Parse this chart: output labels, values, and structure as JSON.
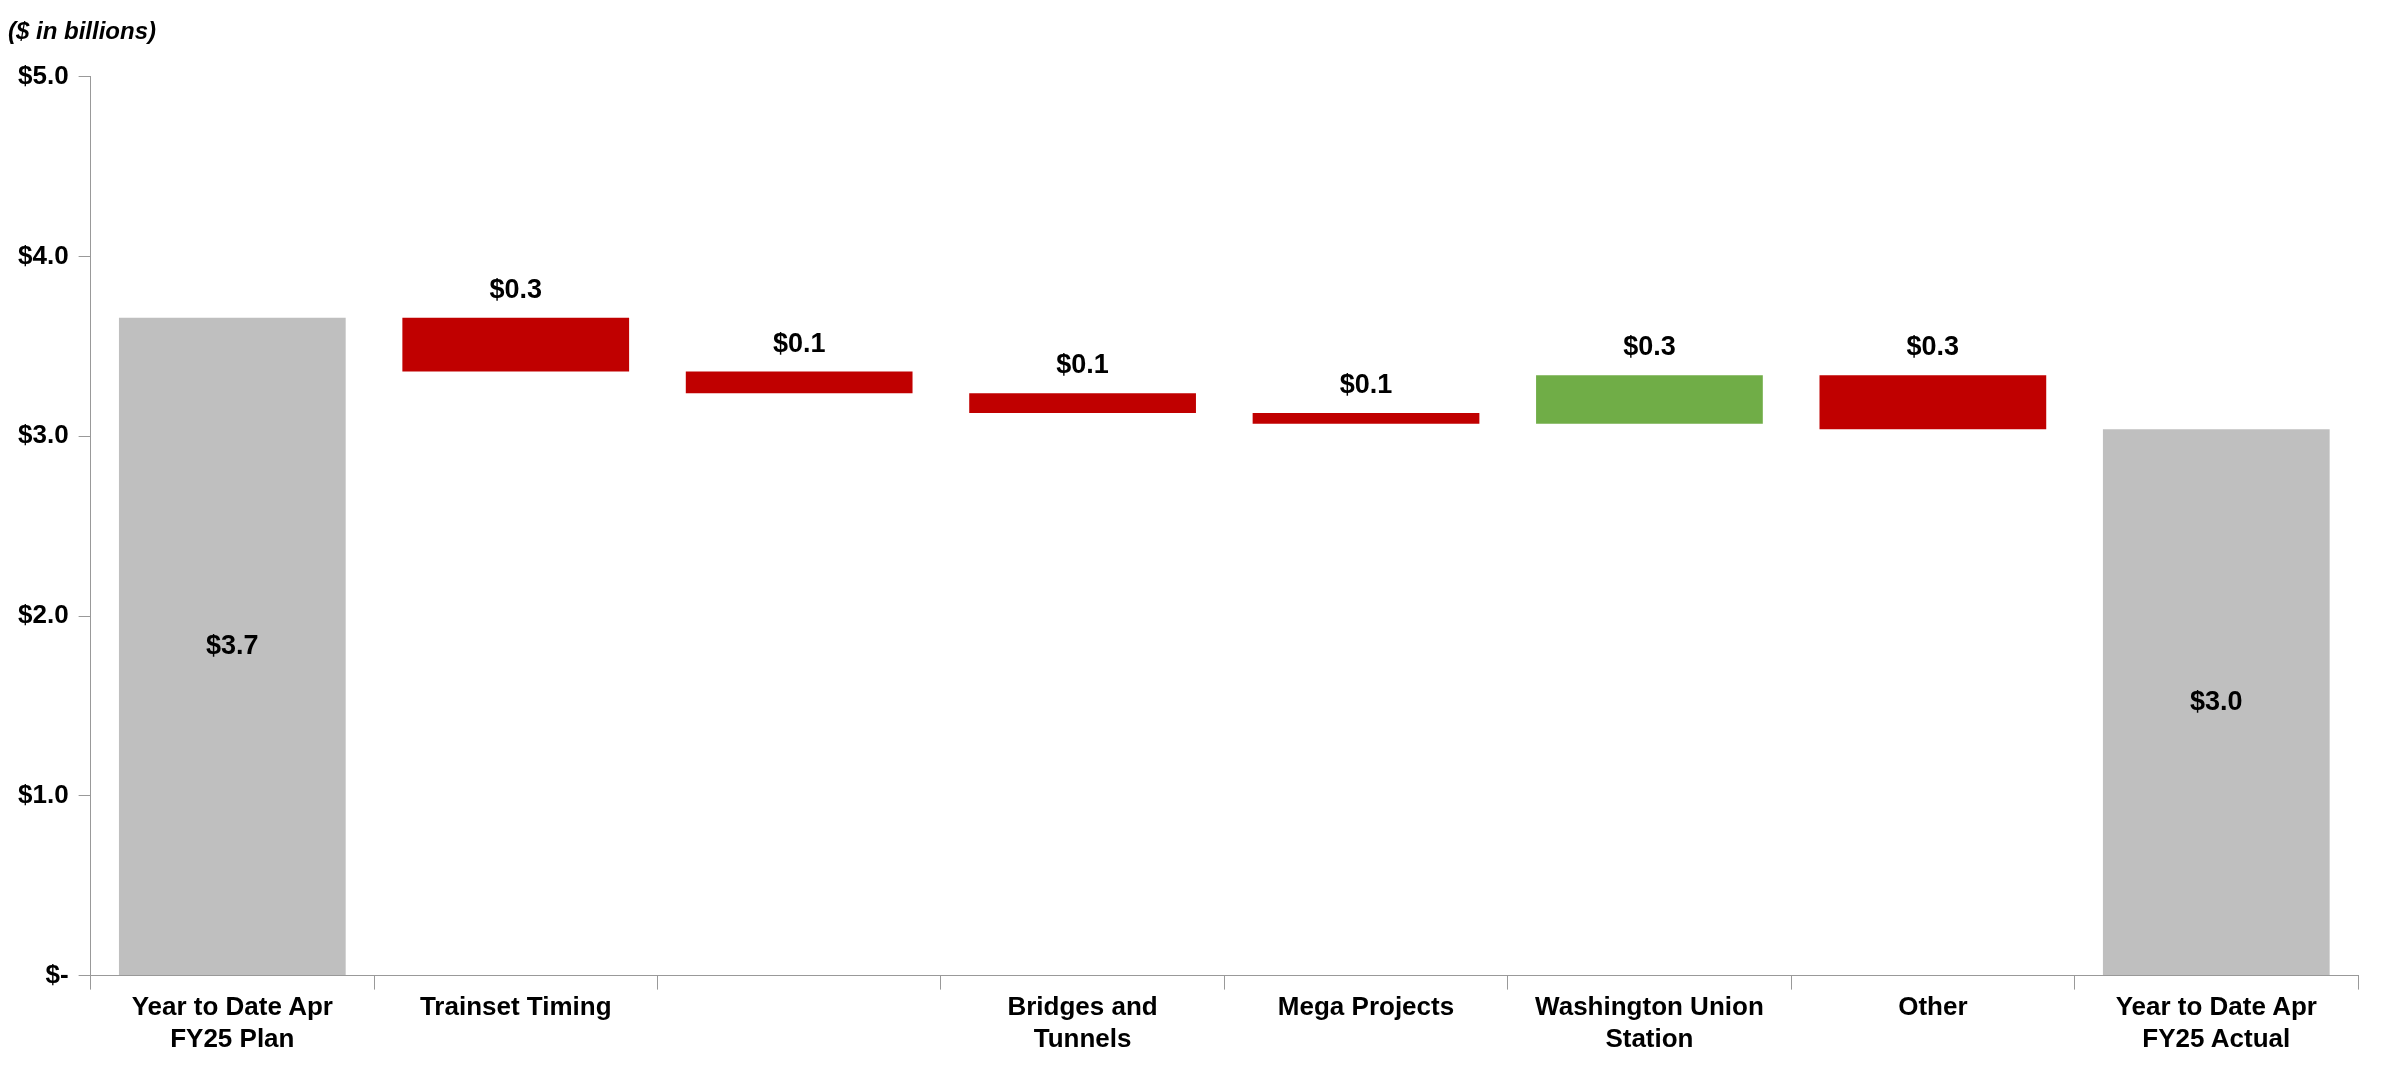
{
  "chart_data": {
    "type": "bar",
    "title": "($ in billions)",
    "categories": [
      "Year to Date Apr FY25 Plan",
      "Trainset Timing",
      null,
      "Bridges and Tunnels",
      "Mega Projects",
      "Washington Union Station",
      "Other",
      "Year to Date Apr FY25 Actual"
    ],
    "values": [
      3.66,
      -0.3,
      -0.12,
      -0.11,
      -0.06,
      0.27,
      -0.3,
      3.04
    ],
    "base": [
      0,
      3.66,
      3.36,
      3.24,
      3.13,
      3.07,
      3.34,
      0
    ],
    "colors": [
      "#bfbfbf",
      "#c00000",
      "#c00000",
      "#c00000",
      "#c00000",
      "#70ad47",
      "#c00000",
      "#bfbfbf"
    ],
    "value_labels": [
      "$3.7",
      "$0.3",
      "$0.1",
      "$0.1",
      "$0.1",
      "$0.3",
      "$0.3",
      "$3.0"
    ],
    "ylim": [
      0,
      5
    ],
    "yticks": [
      {
        "value": 0,
        "label": "$-"
      },
      {
        "value": 1,
        "label": "$1.0"
      },
      {
        "value": 2,
        "label": "$2.0"
      },
      {
        "value": 3,
        "label": "$3.0"
      },
      {
        "value": 4,
        "label": "$4.0"
      },
      {
        "value": 5,
        "label": "$5.0"
      }
    ]
  }
}
